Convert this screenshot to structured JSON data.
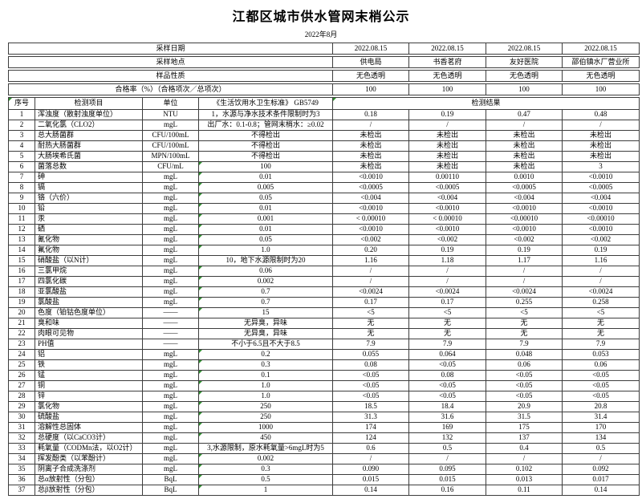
{
  "title": "江都区城市供水管网末梢公示",
  "subtitle": "2022年8月",
  "info_rows": [
    {
      "label": "采样日期",
      "values": [
        "2022.08.15",
        "2022.08.15",
        "2022.08.15",
        "2022.08.15"
      ]
    },
    {
      "label": "采样地点",
      "values": [
        "供电局",
        "书香茗府",
        "友好医院",
        "邵伯镇水厂营业所"
      ]
    },
    {
      "label": "样品性质",
      "values": [
        "无色透明",
        "无色透明",
        "无色透明",
        "无色透明"
      ]
    },
    {
      "label": "合格率（%）（合格项次／总项次）",
      "values": [
        "100",
        "100",
        "100",
        "100"
      ]
    }
  ],
  "table": {
    "headers": {
      "no": "序号",
      "item": "检测项目",
      "unit": "单位",
      "standard": "《生活饮用水卫生标准》 GB5749",
      "result": "检测结果"
    },
    "rows": [
      {
        "no": "1",
        "item": "浑浊度（散射浊度单位）",
        "unit": "NTU",
        "standard": "1，水源与净水技术条件限制时为3",
        "results": [
          "0.18",
          "0.19",
          "0.47",
          "0.48"
        ],
        "flag": false
      },
      {
        "no": "2",
        "item": "二氧化氯（CLO2）",
        "unit": "mgL",
        "standard": "出厂水：0.1-0.8；管网末梢水：≥0.02",
        "results": [
          "/",
          "/",
          "/",
          "/"
        ],
        "flag": false
      },
      {
        "no": "3",
        "item": "总大肠菌群",
        "unit": "CFU/100mL",
        "standard": "不得检出",
        "results": [
          "未检出",
          "未检出",
          "未检出",
          "未检出"
        ],
        "flag": false
      },
      {
        "no": "4",
        "item": "耐热大肠菌群",
        "unit": "CFU/100mL",
        "standard": "不得检出",
        "results": [
          "未检出",
          "未检出",
          "未检出",
          "未检出"
        ],
        "flag": false
      },
      {
        "no": "5",
        "item": "大肠埃希氏菌",
        "unit": "MPN/100mL",
        "standard": "不得检出",
        "results": [
          "未检出",
          "未检出",
          "未检出",
          "未检出"
        ],
        "flag": false
      },
      {
        "no": "6",
        "item": "菌落总数",
        "unit": "CFU/mL",
        "standard": "100",
        "results": [
          "未检出",
          "未检出",
          "未检出",
          "3"
        ],
        "flag": true
      },
      {
        "no": "7",
        "item": "砷",
        "unit": "mgL",
        "standard": "0.01",
        "results": [
          "<0.0010",
          "0.00110",
          "0.0010",
          "<0.0010"
        ],
        "flag": true
      },
      {
        "no": "8",
        "item": "镉",
        "unit": "mgL",
        "standard": "0.005",
        "results": [
          "<0.0005",
          "<0.0005",
          "<0.0005",
          "<0.0005"
        ],
        "flag": true
      },
      {
        "no": "9",
        "item": "铬（六价）",
        "unit": "mgL",
        "standard": "0.05",
        "results": [
          "<0.004",
          "<0.004",
          "<0.004",
          "<0.004"
        ],
        "flag": true
      },
      {
        "no": "10",
        "item": "铅",
        "unit": "mgL",
        "standard": "0.01",
        "results": [
          "<0.0010",
          "<0.0010",
          "<0.0010",
          "<0.0010"
        ],
        "flag": true
      },
      {
        "no": "11",
        "item": "汞",
        "unit": "mgL",
        "standard": "0.001",
        "results": [
          "< 0.00010",
          "< 0.00010",
          "<0.00010",
          "<0.00010"
        ],
        "flag": true
      },
      {
        "no": "12",
        "item": "硒",
        "unit": "mgL",
        "standard": "0.01",
        "results": [
          "<0.0010",
          "<0.0010",
          "<0.0010",
          "<0.0010"
        ],
        "flag": true
      },
      {
        "no": "13",
        "item": "氰化物",
        "unit": "mgL",
        "standard": "0.05",
        "results": [
          "<0.002",
          "<0.002",
          "<0.002",
          "<0.002"
        ],
        "flag": true
      },
      {
        "no": "14",
        "item": "氟化物",
        "unit": "mgL",
        "standard": "1.0",
        "results": [
          "0.20",
          "0.19",
          "0.19",
          "0.19"
        ],
        "flag": true
      },
      {
        "no": "15",
        "item": "硝酸盐（以N计）",
        "unit": "mgL",
        "standard": "10，地下水源限制时为20",
        "results": [
          "1.16",
          "1.18",
          "1.17",
          "1.16"
        ],
        "flag": false
      },
      {
        "no": "16",
        "item": "三氯甲烷",
        "unit": "mgL",
        "standard": "0.06",
        "results": [
          "/",
          "/",
          "/",
          "/"
        ],
        "flag": true
      },
      {
        "no": "17",
        "item": "四氯化碳",
        "unit": "mgL",
        "standard": "0.002",
        "results": [
          "/",
          "/",
          "/",
          "/"
        ],
        "flag": true
      },
      {
        "no": "18",
        "item": "亚氯酸盐",
        "unit": "mgL",
        "standard": "0.7",
        "results": [
          "<0.0024",
          "<0.0024",
          "<0.0024",
          "<0.0024"
        ],
        "flag": true
      },
      {
        "no": "19",
        "item": "氯酸盐",
        "unit": "mgL",
        "standard": "0.7",
        "results": [
          "0.17",
          "0.17",
          "0.255",
          "0.258"
        ],
        "flag": true
      },
      {
        "no": "20",
        "item": "色度（铂钴色度单位）",
        "unit": "——",
        "standard": "15",
        "results": [
          "<5",
          "<5",
          "<5",
          "<5"
        ],
        "flag": true
      },
      {
        "no": "21",
        "item": "臭和味",
        "unit": "——",
        "standard": "无异臭，异味",
        "results": [
          "无",
          "无",
          "无",
          "无"
        ],
        "flag": false
      },
      {
        "no": "22",
        "item": "肉眼可见物",
        "unit": "——",
        "standard": "无异臭，异味",
        "results": [
          "无",
          "无",
          "无",
          "无"
        ],
        "flag": false
      },
      {
        "no": "23",
        "item": "PH值",
        "unit": "——",
        "standard": "不小于6.5且不大于8.5",
        "results": [
          "7.9",
          "7.9",
          "7.9",
          "7.9"
        ],
        "flag": false
      },
      {
        "no": "24",
        "item": "铝",
        "unit": "mgL",
        "standard": "0.2",
        "results": [
          "0.055",
          "0.064",
          "0.048",
          "0.053"
        ],
        "flag": true
      },
      {
        "no": "25",
        "item": "铁",
        "unit": "mgL",
        "standard": "0.3",
        "results": [
          "0.08",
          "<0.05",
          "0.06",
          "0.06"
        ],
        "flag": true
      },
      {
        "no": "26",
        "item": "锰",
        "unit": "mgL",
        "standard": "0.1",
        "results": [
          "<0.05",
          "0.08",
          "<0.05",
          "<0.05"
        ],
        "flag": true
      },
      {
        "no": "27",
        "item": "铜",
        "unit": "mgL",
        "standard": "1.0",
        "results": [
          "<0.05",
          "<0.05",
          "<0.05",
          "<0.05"
        ],
        "flag": true
      },
      {
        "no": "28",
        "item": "锌",
        "unit": "mgL",
        "standard": "1.0",
        "results": [
          "<0.05",
          "<0.05",
          "<0.05",
          "<0.05"
        ],
        "flag": true
      },
      {
        "no": "29",
        "item": "氯化物",
        "unit": "mgL",
        "standard": "250",
        "results": [
          "18.5",
          "18.4",
          "20.9",
          "20.8"
        ],
        "flag": true
      },
      {
        "no": "30",
        "item": "硫酸盐",
        "unit": "mgL",
        "standard": "250",
        "results": [
          "31.3",
          "31.6",
          "31.5",
          "31.4"
        ],
        "flag": true
      },
      {
        "no": "31",
        "item": "溶解性总固体",
        "unit": "mgL",
        "standard": "1000",
        "results": [
          "174",
          "169",
          "175",
          "170"
        ],
        "flag": true
      },
      {
        "no": "32",
        "item": "总硬度（以CaCO3计）",
        "unit": "mgL",
        "standard": "450",
        "results": [
          "124",
          "132",
          "137",
          "134"
        ],
        "flag": true
      },
      {
        "no": "33",
        "item": "耗氧量（CODMn法，以O2计）",
        "unit": "mgL",
        "standard": "3,水源限制，原水耗氧量>6mgL时为5",
        "results": [
          "0.6",
          "0.5",
          "0.4",
          "0.5"
        ],
        "flag": false
      },
      {
        "no": "34",
        "item": "挥发酚类（以苯酚计）",
        "unit": "mgL",
        "standard": "0.002",
        "results": [
          "/",
          "/",
          "/",
          "/"
        ],
        "flag": true
      },
      {
        "no": "35",
        "item": "阴离子合成洗涤剂",
        "unit": "mgL",
        "standard": "0.3",
        "results": [
          "0.090",
          "0.095",
          "0.102",
          "0.092"
        ],
        "flag": true
      },
      {
        "no": "36",
        "item": "总α放射性（分包）",
        "unit": "BqL",
        "standard": "0.5",
        "results": [
          "0.015",
          "0.015",
          "0.013",
          "0.017"
        ],
        "flag": true
      },
      {
        "no": "37",
        "item": "总β放射性（分包）",
        "unit": "BqL",
        "standard": "1",
        "results": [
          "0.14",
          "0.16",
          "0.11",
          "0.14"
        ],
        "flag": true
      }
    ]
  },
  "colors": {
    "flag_green": "#2f8f2f",
    "border": "#3d3d3d",
    "text": "#000000"
  }
}
